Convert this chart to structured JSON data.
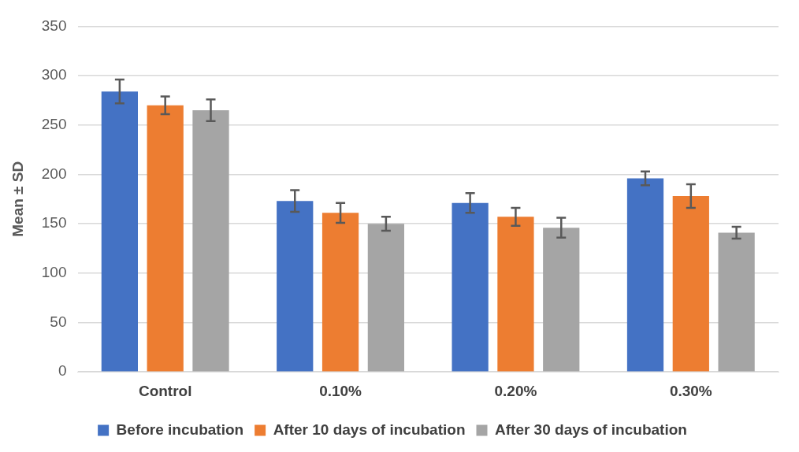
{
  "chart_data": {
    "type": "bar",
    "ylabel": "Mean ± SD",
    "categories": [
      "Control",
      "0.10%",
      "0.20%",
      "0.30%"
    ],
    "series": [
      {
        "name": "Before incubation",
        "color": "#4472c4",
        "values": [
          284,
          173,
          171,
          196
        ],
        "errors": [
          12,
          11,
          10,
          7
        ]
      },
      {
        "name": "After 10 days of incubation",
        "color": "#ed7d31",
        "values": [
          270,
          161,
          157,
          178
        ],
        "errors": [
          9,
          10,
          9,
          12
        ]
      },
      {
        "name": "After 30 days of incubation",
        "color": "#a5a5a5",
        "values": [
          265,
          150,
          146,
          141
        ],
        "errors": [
          11,
          7,
          10,
          6
        ]
      }
    ],
    "ylim": [
      0,
      350
    ],
    "yticks": [
      0,
      50,
      100,
      150,
      200,
      250,
      300,
      350
    ],
    "grid": "y",
    "legend": "bottom"
  }
}
